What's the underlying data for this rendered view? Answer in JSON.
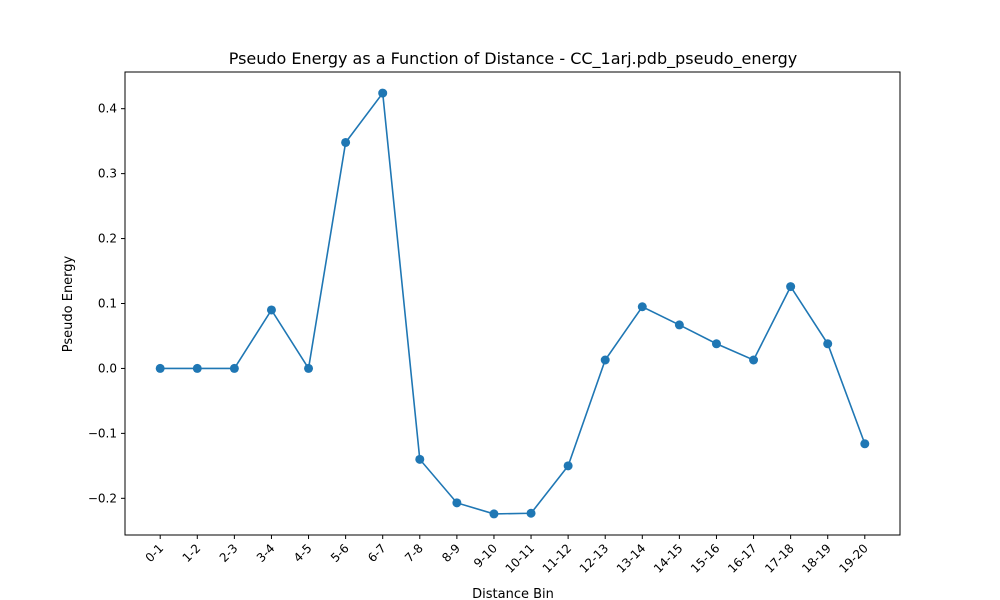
{
  "chart_data": {
    "type": "line",
    "title": "Pseudo Energy as a Function of Distance - CC_1arj.pdb_pseudo_energy",
    "xlabel": "Distance Bin",
    "ylabel": "Pseudo Energy",
    "categories": [
      "0-1",
      "1-2",
      "2-3",
      "3-4",
      "4-5",
      "5-6",
      "6-7",
      "7-8",
      "8-9",
      "9-10",
      "10-11",
      "11-12",
      "12-13",
      "13-14",
      "14-15",
      "15-16",
      "16-17",
      "17-18",
      "18-19",
      "19-20"
    ],
    "values": [
      0.0,
      0.0,
      0.0,
      0.09,
      0.0,
      0.348,
      0.424,
      -0.14,
      -0.207,
      -0.224,
      -0.223,
      -0.15,
      0.013,
      0.095,
      0.067,
      0.038,
      0.013,
      0.126,
      0.038,
      -0.116
    ],
    "ylim": [
      -0.2565,
      0.4565
    ],
    "yticks": [
      -0.2,
      -0.1,
      0.0,
      0.1,
      0.2,
      0.3,
      0.4
    ],
    "ytick_labels": [
      "−0.2",
      "−0.1",
      "0.0",
      "0.1",
      "0.2",
      "0.3",
      "0.4"
    ],
    "grid": false,
    "markers": true,
    "color": "#1f77b4"
  }
}
